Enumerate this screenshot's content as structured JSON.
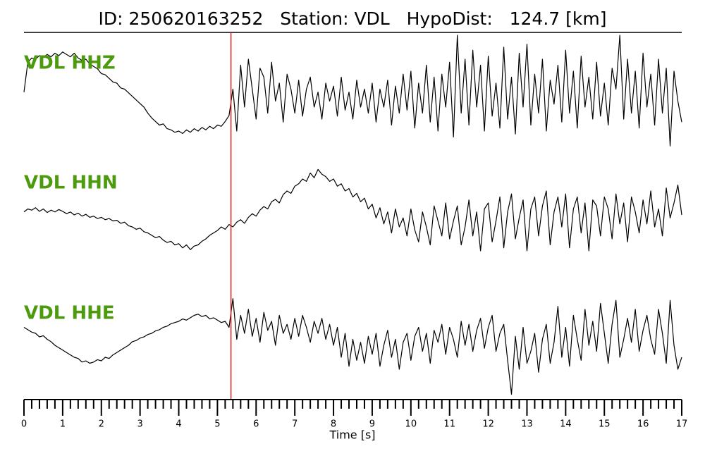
{
  "chart_data": {
    "type": "line",
    "title": "ID: 250620163252   Station: VDL   HypoDist:   124.7 [km]",
    "xlabel": "Time [s]",
    "xlim": [
      0,
      17
    ],
    "xticks": [
      0,
      1,
      2,
      3,
      4,
      5,
      6,
      7,
      8,
      9,
      10,
      11,
      12,
      13,
      14,
      15,
      16,
      17
    ],
    "xticks_minor": [
      0.2,
      0.4,
      0.6,
      0.8,
      1.2,
      1.4,
      1.6,
      1.8,
      2.2,
      2.4,
      2.6,
      2.8,
      3.2,
      3.4,
      3.6,
      3.8,
      4.2,
      4.4,
      4.6,
      4.8,
      5.2,
      5.4,
      5.6,
      5.8,
      6.2,
      6.4,
      6.6,
      6.8,
      7.2,
      7.4,
      7.6,
      7.8,
      8.2,
      8.4,
      8.6,
      8.8,
      9.2,
      9.4,
      9.6,
      9.8,
      10.2,
      10.4,
      10.6,
      10.8,
      11.2,
      11.4,
      11.6,
      11.8,
      12.2,
      12.4,
      12.6,
      12.8,
      13.2,
      13.4,
      13.6,
      13.8,
      14.2,
      14.4,
      14.6,
      14.8,
      15.2,
      15.4,
      15.6,
      15.8,
      16.2,
      16.4,
      16.6,
      16.8
    ],
    "ylim": [
      -1,
      1
    ],
    "label_color": "#4c9a0e",
    "pick": {
      "x": 5.35,
      "color": "#e02020"
    },
    "x": [
      0,
      0.1,
      0.2,
      0.3,
      0.4,
      0.5,
      0.6,
      0.7,
      0.8,
      0.9,
      1,
      1.1,
      1.2,
      1.3,
      1.4,
      1.5,
      1.6,
      1.7,
      1.8,
      1.9,
      2,
      2.1,
      2.2,
      2.3,
      2.4,
      2.5,
      2.6,
      2.7,
      2.8,
      2.9,
      3,
      3.1,
      3.2,
      3.3,
      3.4,
      3.5,
      3.6,
      3.7,
      3.8,
      3.9,
      4,
      4.1,
      4.2,
      4.3,
      4.4,
      4.5,
      4.6,
      4.7,
      4.8,
      4.9,
      5,
      5.1,
      5.2,
      5.3,
      5.4,
      5.5,
      5.6,
      5.7,
      5.8,
      5.9,
      6,
      6.1,
      6.2,
      6.3,
      6.4,
      6.5,
      6.6,
      6.7,
      6.8,
      6.9,
      7,
      7.1,
      7.2,
      7.3,
      7.4,
      7.5,
      7.6,
      7.7,
      7.8,
      7.9,
      8,
      8.1,
      8.2,
      8.3,
      8.4,
      8.5,
      8.6,
      8.7,
      8.8,
      8.9,
      9,
      9.1,
      9.2,
      9.3,
      9.4,
      9.5,
      9.6,
      9.7,
      9.8,
      9.9,
      10,
      10.1,
      10.2,
      10.3,
      10.4,
      10.5,
      10.6,
      10.7,
      10.8,
      10.9,
      11,
      11.1,
      11.2,
      11.3,
      11.4,
      11.5,
      11.6,
      11.7,
      11.8,
      11.9,
      12,
      12.1,
      12.2,
      12.3,
      12.4,
      12.5,
      12.6,
      12.7,
      12.8,
      12.9,
      13,
      13.1,
      13.2,
      13.3,
      13.4,
      13.5,
      13.6,
      13.7,
      13.8,
      13.9,
      14,
      14.1,
      14.2,
      14.3,
      14.4,
      14.5,
      14.6,
      14.7,
      14.8,
      14.9,
      15,
      15.1,
      15.2,
      15.3,
      15.4,
      15.5,
      15.6,
      15.7,
      15.8,
      15.9,
      16,
      16.1,
      16.2,
      16.3,
      16.4,
      16.5,
      16.6,
      16.7,
      16.8,
      16.9,
      17
    ],
    "series": [
      {
        "name": "VDL HHZ",
        "color": "#000000",
        "values": [
          0.05,
          0.55,
          0.62,
          0.6,
          0.66,
          0.63,
          0.68,
          0.64,
          0.7,
          0.66,
          0.72,
          0.68,
          0.64,
          0.7,
          0.62,
          0.58,
          0.6,
          0.52,
          0.48,
          0.44,
          0.36,
          0.34,
          0.28,
          0.22,
          0.2,
          0.12,
          0.1,
          0.04,
          -0.02,
          -0.08,
          -0.14,
          -0.2,
          -0.3,
          -0.38,
          -0.44,
          -0.5,
          -0.48,
          -0.56,
          -0.58,
          -0.62,
          -0.6,
          -0.64,
          -0.58,
          -0.62,
          -0.56,
          -0.6,
          -0.54,
          -0.58,
          -0.52,
          -0.56,
          -0.5,
          -0.52,
          -0.44,
          -0.34,
          0.1,
          -0.6,
          0.5,
          -0.2,
          0.6,
          0.1,
          -0.4,
          0.45,
          0.3,
          -0.3,
          0.55,
          -0.1,
          0.2,
          -0.45,
          0.35,
          0.1,
          -0.3,
          0.25,
          -0.35,
          0.1,
          0.3,
          -0.2,
          0.05,
          -0.4,
          0.2,
          -0.1,
          0.15,
          -0.35,
          0.3,
          -0.25,
          0.05,
          -0.4,
          0.25,
          -0.2,
          0.1,
          -0.3,
          0.2,
          -0.45,
          0.1,
          -0.2,
          0.25,
          -0.5,
          0.15,
          -0.3,
          0.35,
          -0.25,
          0.4,
          -0.55,
          0.2,
          -0.3,
          0.5,
          -0.45,
          0.3,
          -0.6,
          0.35,
          -0.2,
          0.55,
          -0.7,
          1.0,
          -0.3,
          0.6,
          -0.5,
          0.75,
          -0.2,
          0.5,
          -0.6,
          0.65,
          -0.35,
          0.2,
          -0.55,
          0.8,
          -0.4,
          0.3,
          -0.65,
          0.7,
          -0.2,
          0.85,
          -0.5,
          0.35,
          -0.3,
          0.6,
          -0.6,
          0.25,
          -0.15,
          0.5,
          -0.45,
          0.75,
          -0.3,
          0.4,
          -0.55,
          0.65,
          -0.2,
          0.3,
          -0.4,
          0.55,
          -0.35,
          0.2,
          -0.5,
          0.45,
          0.1,
          1.0,
          -0.4,
          0.6,
          -0.3,
          0.4,
          -0.55,
          0.7,
          -0.2,
          0.35,
          -0.5,
          0.6,
          -0.3,
          0.45,
          -0.85,
          0.4,
          -0.1,
          -0.45
        ]
      },
      {
        "name": "VDL HHN",
        "color": "#000000",
        "values": [
          0.05,
          0.1,
          0.08,
          0.12,
          0.06,
          0.1,
          0.04,
          0.08,
          0.05,
          0.09,
          0.06,
          0.02,
          0.05,
          0.0,
          0.03,
          -0.02,
          0.01,
          -0.04,
          -0.02,
          -0.06,
          -0.04,
          -0.08,
          -0.06,
          -0.1,
          -0.09,
          -0.14,
          -0.12,
          -0.18,
          -0.2,
          -0.24,
          -0.22,
          -0.28,
          -0.3,
          -0.34,
          -0.38,
          -0.36,
          -0.42,
          -0.46,
          -0.44,
          -0.5,
          -0.48,
          -0.55,
          -0.5,
          -0.58,
          -0.52,
          -0.5,
          -0.44,
          -0.4,
          -0.34,
          -0.3,
          -0.26,
          -0.2,
          -0.24,
          -0.16,
          -0.2,
          -0.12,
          -0.08,
          -0.14,
          -0.04,
          0.02,
          -0.02,
          0.08,
          0.14,
          0.1,
          0.22,
          0.26,
          0.2,
          0.34,
          0.4,
          0.36,
          0.48,
          0.52,
          0.6,
          0.56,
          0.7,
          0.62,
          0.76,
          0.68,
          0.64,
          0.56,
          0.6,
          0.48,
          0.52,
          0.4,
          0.44,
          0.3,
          0.36,
          0.22,
          0.28,
          0.1,
          0.18,
          -0.05,
          0.12,
          -0.15,
          0.05,
          -0.3,
          0.1,
          -0.2,
          -0.05,
          -0.35,
          0.1,
          -0.25,
          -0.45,
          0.05,
          -0.2,
          -0.5,
          0.15,
          -0.1,
          -0.35,
          0.2,
          -0.4,
          -0.1,
          0.15,
          -0.5,
          -0.2,
          0.25,
          -0.35,
          0.05,
          -0.6,
          0.1,
          0.2,
          -0.45,
          -0.1,
          0.3,
          -0.55,
          0.05,
          0.35,
          -0.4,
          -0.05,
          0.25,
          -0.6,
          0.1,
          0.3,
          -0.35,
          0.15,
          0.4,
          -0.5,
          0.05,
          0.3,
          -0.2,
          0.35,
          -0.55,
          0.1,
          0.3,
          -0.3,
          0.2,
          -0.6,
          0.25,
          0.15,
          -0.35,
          0.3,
          0.1,
          -0.4,
          0.35,
          -0.15,
          0.2,
          -0.45,
          0.3,
          0.05,
          -0.3,
          0.25,
          -0.15,
          0.4,
          -0.2,
          0.1,
          -0.35,
          0.45,
          -0.05,
          0.2,
          0.5,
          0.0
        ]
      },
      {
        "name": "VDL HHE",
        "color": "#000000",
        "values": [
          0.3,
          0.26,
          0.22,
          0.2,
          0.14,
          0.16,
          0.1,
          0.06,
          0.0,
          -0.04,
          -0.08,
          -0.12,
          -0.16,
          -0.2,
          -0.22,
          -0.28,
          -0.26,
          -0.3,
          -0.28,
          -0.24,
          -0.26,
          -0.2,
          -0.22,
          -0.16,
          -0.12,
          -0.08,
          -0.04,
          0.0,
          0.06,
          0.08,
          0.12,
          0.14,
          0.18,
          0.2,
          0.24,
          0.26,
          0.3,
          0.32,
          0.36,
          0.38,
          0.4,
          0.44,
          0.42,
          0.46,
          0.5,
          0.52,
          0.48,
          0.5,
          0.44,
          0.46,
          0.42,
          0.38,
          0.4,
          0.3,
          0.78,
          0.1,
          0.5,
          0.2,
          0.6,
          0.15,
          0.45,
          0.05,
          0.55,
          0.25,
          0.4,
          0.0,
          0.5,
          0.2,
          0.35,
          0.1,
          0.45,
          0.15,
          0.5,
          0.3,
          0.05,
          0.4,
          0.2,
          0.45,
          0.1,
          0.35,
          0.0,
          0.3,
          -0.2,
          0.2,
          -0.35,
          0.1,
          -0.25,
          0.05,
          -0.3,
          0.15,
          -0.15,
          0.2,
          -0.35,
          0.0,
          0.25,
          -0.2,
          0.1,
          -0.4,
          0.05,
          0.2,
          -0.25,
          0.15,
          0.3,
          -0.1,
          0.2,
          -0.3,
          0.25,
          0.05,
          0.35,
          -0.15,
          0.3,
          0.1,
          -0.2,
          0.4,
          0.0,
          0.35,
          -0.1,
          0.25,
          0.45,
          -0.05,
          0.3,
          0.5,
          -0.1,
          0.2,
          0.35,
          -0.25,
          -0.82,
          0.15,
          -0.4,
          0.3,
          -0.3,
          -0.1,
          0.2,
          -0.45,
          0.1,
          0.35,
          -0.3,
          0.05,
          0.65,
          -0.2,
          0.3,
          -0.35,
          0.5,
          0.1,
          -0.25,
          0.6,
          0.0,
          0.4,
          -0.1,
          0.7,
          0.2,
          -0.3,
          0.35,
          0.75,
          -0.2,
          0.1,
          0.45,
          0.05,
          0.6,
          -0.1,
          0.25,
          0.5,
          0.1,
          -0.15,
          0.6,
          0.2,
          -0.3,
          0.75,
          0.0,
          -0.4,
          -0.2
        ]
      }
    ]
  }
}
